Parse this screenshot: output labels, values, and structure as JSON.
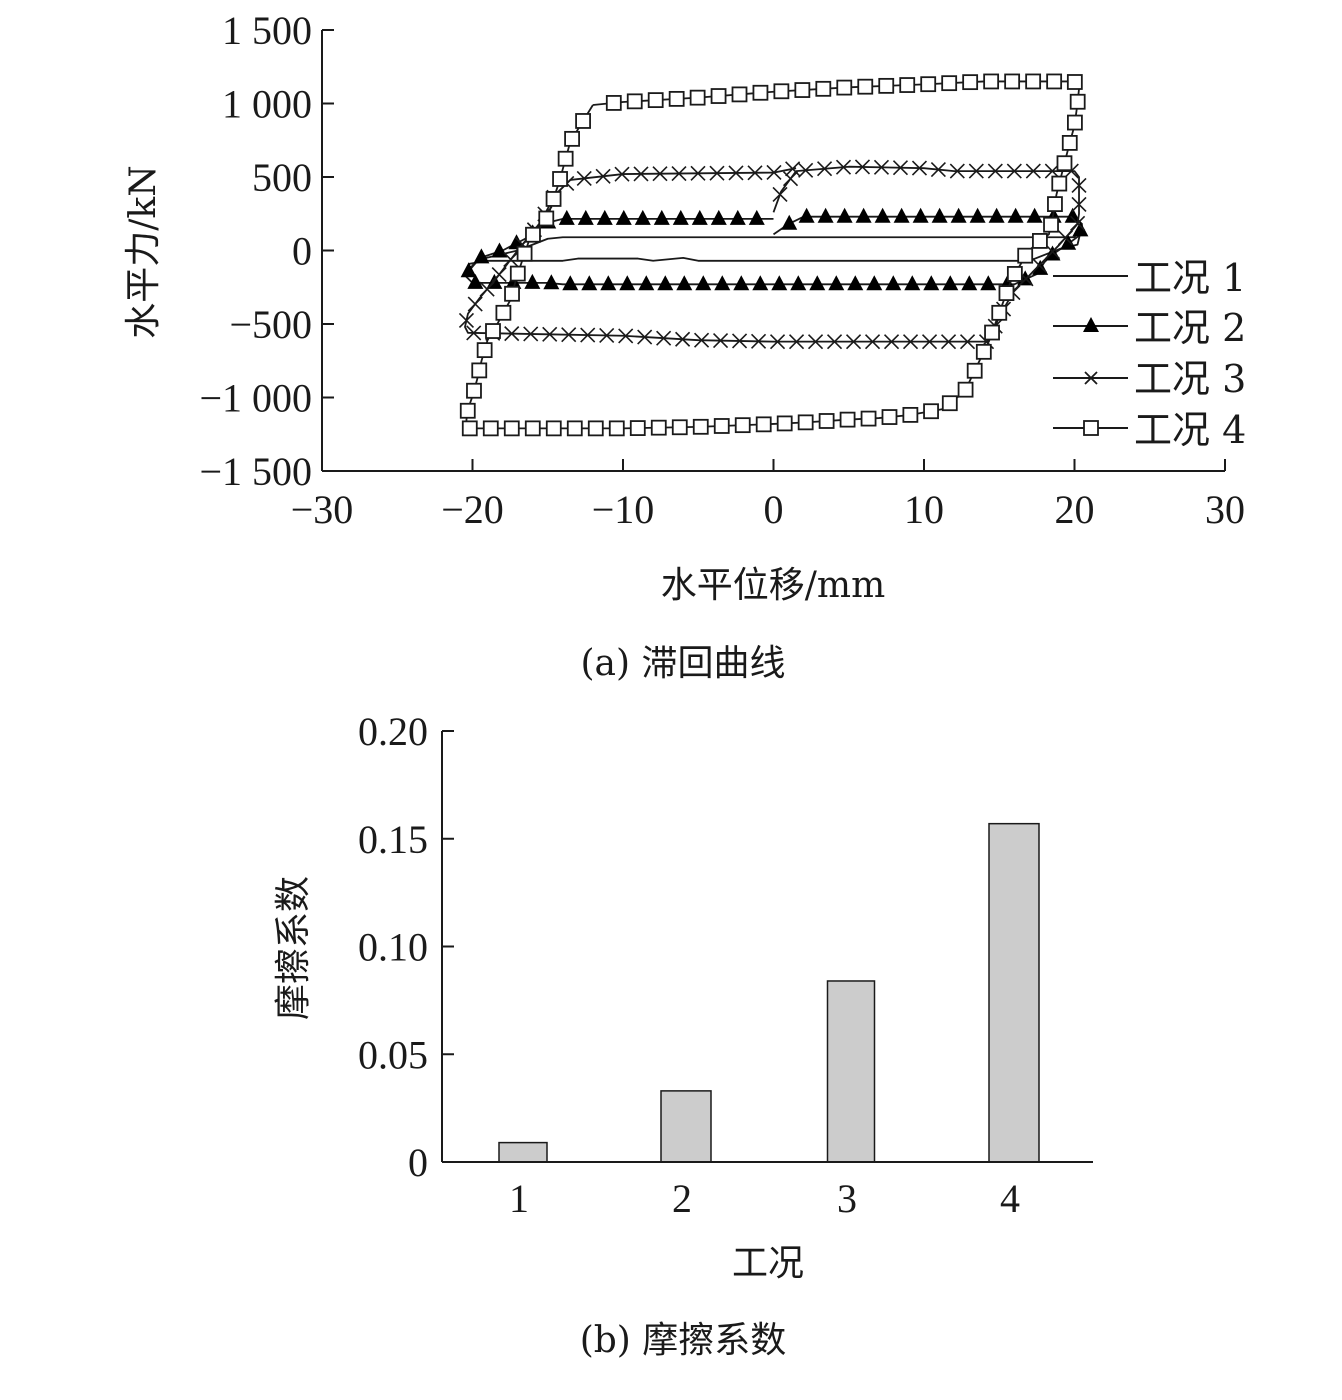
{
  "figure": {
    "caption_a": "(a) 滞回曲线",
    "caption_b": "(b) 摩擦系数"
  },
  "chart_data": [
    {
      "type": "line",
      "title": "(a) 滞回曲线",
      "xlabel": "水平位移/mm",
      "ylabel": "水平力/kN",
      "xlim": [
        -30,
        30
      ],
      "ylim": [
        -1500,
        1500
      ],
      "xticks": [
        -30,
        -20,
        -10,
        0,
        10,
        20,
        30
      ],
      "xtick_labels": [
        "−30",
        "−20",
        "−10",
        "0",
        "10",
        "20",
        "30"
      ],
      "yticks": [
        1500,
        1000,
        500,
        0,
        -500,
        -1000,
        -1500
      ],
      "ytick_labels": [
        "1 500",
        "1 000",
        "500",
        "0",
        "−500",
        "−1 000",
        "−1 500"
      ],
      "grid": false,
      "legend_position": "right-center",
      "series": [
        {
          "name": "工况 1",
          "marker": "none",
          "points": [
            [
              0,
              90
            ],
            [
              20,
              90
            ],
            [
              20.5,
              170
            ],
            [
              20.2,
              40
            ],
            [
              19,
              10
            ],
            [
              17,
              -70
            ],
            [
              -5,
              -70
            ],
            [
              -6,
              -50
            ],
            [
              -8,
              -70
            ],
            [
              -9,
              -55
            ],
            [
              -13,
              -55
            ],
            [
              -14,
              -70
            ],
            [
              -19,
              -70
            ],
            [
              -20.2,
              -90
            ],
            [
              -20.3,
              -130
            ],
            [
              -19.5,
              -60
            ],
            [
              -17,
              0
            ],
            [
              -15,
              80
            ],
            [
              -14,
              90
            ],
            [
              0,
              90
            ]
          ]
        },
        {
          "name": "工况 2",
          "marker": "triangle-filled",
          "points": [
            [
              0,
              110
            ],
            [
              1,
              180
            ],
            [
              2,
              230
            ],
            [
              20,
              230
            ],
            [
              20.5,
              180
            ],
            [
              20.3,
              100
            ],
            [
              19.5,
              40
            ],
            [
              18.5,
              -30
            ],
            [
              18,
              -80
            ],
            [
              17.5,
              -160
            ],
            [
              16,
              -230
            ],
            [
              -14,
              -230
            ],
            [
              -15,
              -220
            ],
            [
              -20,
              -220
            ],
            [
              -20.5,
              -170
            ],
            [
              -19.5,
              -50
            ],
            [
              -18,
              0
            ],
            [
              -16.5,
              80
            ],
            [
              -15,
              190
            ],
            [
              -14,
              215
            ],
            [
              0,
              215
            ]
          ]
        },
        {
          "name": "工况 3",
          "marker": "x",
          "points": [
            [
              0,
              260
            ],
            [
              0.5,
              400
            ],
            [
              1.5,
              540
            ],
            [
              5,
              570
            ],
            [
              10,
              560
            ],
            [
              12,
              540
            ],
            [
              20,
              540
            ],
            [
              20.3,
              500
            ],
            [
              20.3,
              250
            ],
            [
              20.2,
              180
            ],
            [
              19,
              40
            ],
            [
              17,
              -170
            ],
            [
              16,
              -270
            ],
            [
              15,
              -450
            ],
            [
              14.3,
              -620
            ],
            [
              8,
              -620
            ],
            [
              0,
              -620
            ],
            [
              -5,
              -610
            ],
            [
              -10,
              -580
            ],
            [
              -15,
              -570
            ],
            [
              -20.3,
              -560
            ],
            [
              -20.5,
              -520
            ],
            [
              -20.3,
              -430
            ],
            [
              -19.5,
              -320
            ],
            [
              -18.5,
              -200
            ],
            [
              -17,
              0
            ],
            [
              -15.5,
              190
            ],
            [
              -14.5,
              380
            ],
            [
              -13.5,
              480
            ],
            [
              -10,
              520
            ],
            [
              -5,
              525
            ],
            [
              0,
              530
            ],
            [
              1.5,
              560
            ]
          ]
        },
        {
          "name": "工况 4",
          "marker": "square-open",
          "points": [
            [
              -12,
              990
            ],
            [
              -10,
              1010
            ],
            [
              -5,
              1040
            ],
            [
              0,
              1080
            ],
            [
              5,
              1110
            ],
            [
              10,
              1130
            ],
            [
              14,
              1150
            ],
            [
              19,
              1150
            ],
            [
              20,
              1150
            ],
            [
              20.3,
              1100
            ],
            [
              20.2,
              1000
            ],
            [
              20,
              850
            ],
            [
              19.6,
              700
            ],
            [
              19.2,
              540
            ],
            [
              18.8,
              380
            ],
            [
              18.6,
              250
            ],
            [
              18.3,
              110
            ],
            [
              17.5,
              50
            ],
            [
              16.8,
              -20
            ],
            [
              16.5,
              -80
            ],
            [
              15.8,
              -200
            ],
            [
              14.3,
              -620
            ],
            [
              12.7,
              -960
            ],
            [
              11.2,
              -1080
            ],
            [
              9,
              -1120
            ],
            [
              7,
              -1140
            ],
            [
              5,
              -1150
            ],
            [
              2,
              -1170
            ],
            [
              0,
              -1180
            ],
            [
              -5,
              -1200
            ],
            [
              -10,
              -1210
            ],
            [
              -15,
              -1210
            ],
            [
              -19.8,
              -1210
            ],
            [
              -20.4,
              -1210
            ],
            [
              -20.4,
              -1150
            ],
            [
              -20.3,
              -1080
            ],
            [
              -20,
              -990
            ],
            [
              -19.7,
              -880
            ],
            [
              -19.4,
              -750
            ],
            [
              -19,
              -610
            ],
            [
              -18.3,
              -490
            ],
            [
              -17.5,
              -340
            ],
            [
              -17,
              -160
            ],
            [
              -16.2,
              80
            ],
            [
              -15,
              230
            ],
            [
              -14.2,
              480
            ],
            [
              -13.5,
              740
            ],
            [
              -12,
              990
            ]
          ]
        }
      ]
    },
    {
      "type": "bar",
      "title": "(b) 摩擦系数",
      "xlabel": "工况",
      "ylabel": "摩擦系数",
      "categories": [
        "1",
        "2",
        "3",
        "4"
      ],
      "values": [
        0.009,
        0.033,
        0.084,
        0.157
      ],
      "ylim": [
        0,
        0.2
      ],
      "yticks": [
        0,
        0.05,
        0.1,
        0.15,
        0.2
      ],
      "ytick_labels": [
        "0",
        "0.05",
        "0.10",
        "0.15",
        "0.20"
      ],
      "bar_color": "#cccccc",
      "edge_color": "#1a1a1a",
      "grid": false
    }
  ]
}
